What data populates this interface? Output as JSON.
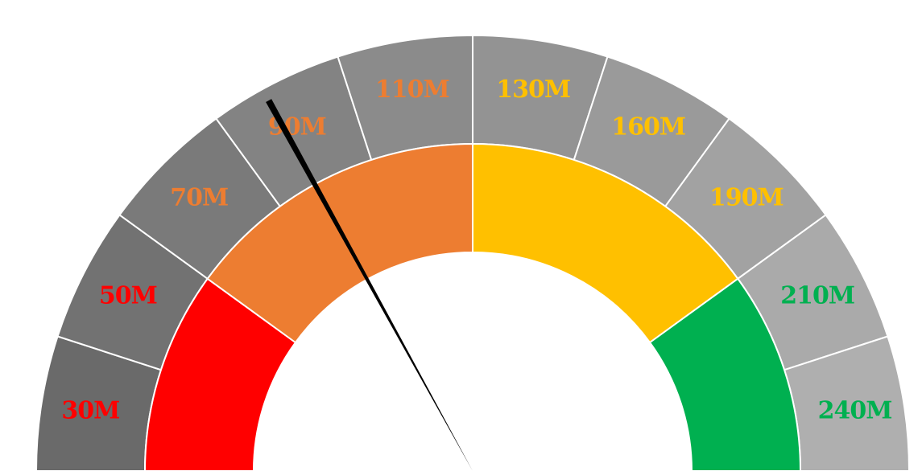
{
  "chart_data": {
    "type": "gauge",
    "title": "",
    "scale_labels": [
      "30M",
      "50M",
      "70M",
      "90M",
      "110M",
      "130M",
      "160M",
      "190M",
      "210M",
      "240M"
    ],
    "scale_label_colors": [
      "#FF0000",
      "#FF0000",
      "#ED7D31",
      "#ED7D31",
      "#ED7D31",
      "#FFC000",
      "#FFC000",
      "#FFC000",
      "#00B050",
      "#00B050"
    ],
    "outer_band_colors": [
      "#6A6A6A",
      "#727272",
      "#7A7A7A",
      "#838383",
      "#8B8B8B",
      "#939393",
      "#9A9A9A",
      "#A2A2A2",
      "#AAAAAA",
      "#AFAFAF"
    ],
    "zones": [
      {
        "color": "#FF0000",
        "from_segment": 0,
        "to_segment": 2
      },
      {
        "color": "#ED7D31",
        "from_segment": 2,
        "to_segment": 5
      },
      {
        "color": "#FFC000",
        "from_segment": 5,
        "to_segment": 8
      },
      {
        "color": "#00B050",
        "from_segment": 8,
        "to_segment": 10
      }
    ],
    "needle_segment_position": 3.4
  }
}
